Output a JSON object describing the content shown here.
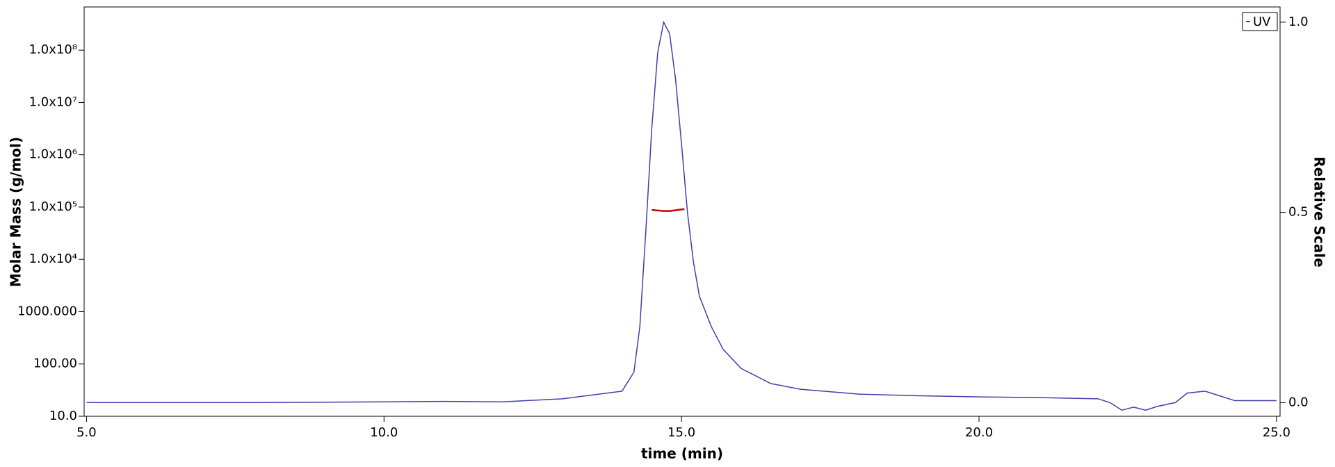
{
  "chart_data": {
    "type": "line",
    "xlabel": "time (min)",
    "ylabel": "Molar Mass (g/mol)",
    "y2label": "Relative Scale",
    "xlim": [
      4.96,
      25.06
    ],
    "xticks": [
      {
        "value": 5,
        "label": "5.0"
      },
      {
        "value": 10,
        "label": "10.0"
      },
      {
        "value": 15,
        "label": "15.0"
      },
      {
        "value": 20,
        "label": "20.0"
      },
      {
        "value": 25,
        "label": "25.0"
      }
    ],
    "ylim": [
      10,
      670000000
    ],
    "ylog": true,
    "yticks": [
      {
        "value": 10,
        "label": "10.0"
      },
      {
        "value": 100,
        "label": "100.00"
      },
      {
        "value": 1000,
        "label": "1000.000"
      },
      {
        "value": 10000,
        "label": "1.0x10⁴"
      },
      {
        "value": 100000,
        "label": "1.0x10⁵"
      },
      {
        "value": 1000000,
        "label": "1.0x10⁶"
      },
      {
        "value": 10000000,
        "label": "1.0x10⁷"
      },
      {
        "value": 100000000,
        "label": "1.0x10⁸"
      }
    ],
    "y2lim": [
      -0.036,
      1.04
    ],
    "y2ticks": [
      {
        "value": 0,
        "label": "0.0"
      },
      {
        "value": 0.5,
        "label": "0.5"
      },
      {
        "value": 1,
        "label": "1.0"
      }
    ],
    "legend": "upper right",
    "series": [
      {
        "name": "UV",
        "color": "#3f3fae",
        "axis": "y2",
        "x": [
          5,
          8,
          10,
          11,
          12,
          13,
          13.5,
          14.0,
          14.2,
          14.3,
          14.4,
          14.5,
          14.6,
          14.7,
          14.8,
          14.9,
          15.0,
          15.1,
          15.2,
          15.3,
          15.5,
          15.7,
          16.0,
          16.5,
          17,
          18,
          19,
          20,
          21,
          22,
          22.2,
          22.4,
          22.6,
          22.8,
          23.0,
          23.3,
          23.5,
          23.8,
          24.0,
          24.3,
          24.5,
          25
        ],
        "values": [
          0.0,
          0.0,
          0.002,
          0.003,
          0.002,
          0.01,
          0.02,
          0.03,
          0.08,
          0.2,
          0.45,
          0.72,
          0.92,
          1.0,
          0.97,
          0.85,
          0.68,
          0.5,
          0.37,
          0.28,
          0.2,
          0.14,
          0.09,
          0.05,
          0.035,
          0.022,
          0.018,
          0.015,
          0.013,
          0.01,
          0.0,
          -0.02,
          -0.012,
          -0.02,
          -0.01,
          0.0,
          0.025,
          0.03,
          0.02,
          0.005,
          0.005,
          0.005
        ]
      },
      {
        "color": "#cc0000",
        "x": [
          14.5,
          14.6,
          14.7,
          14.8,
          14.9,
          15.0,
          15.05
        ],
        "values": [
          88000,
          86000,
          84000,
          84000,
          87000,
          90000,
          91000
        ]
      }
    ]
  }
}
